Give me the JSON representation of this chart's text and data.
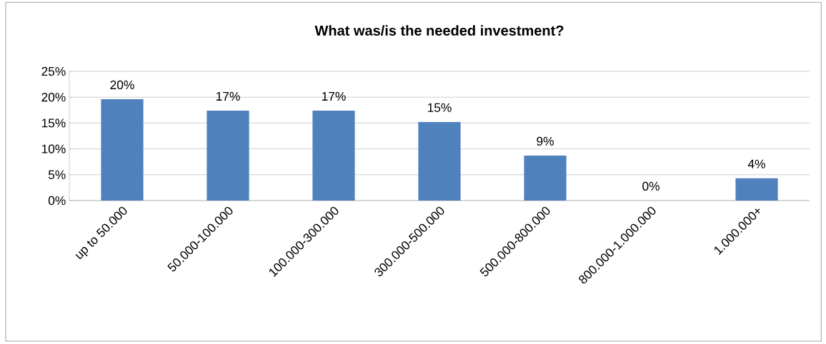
{
  "chart_data": {
    "type": "bar",
    "title": "What was/is the needed investment?",
    "categories": [
      "up to 50.000",
      "50.000-100.000",
      "100.000-300.000",
      "300.000-500.000",
      "500.000-800.000",
      "800.000-1.000.000",
      "1.000.000+"
    ],
    "values": [
      19.6,
      17.4,
      17.4,
      15.2,
      8.7,
      0,
      4.3
    ],
    "value_labels": [
      "20%",
      "17%",
      "17%",
      "15%",
      "9%",
      "0%",
      "4%"
    ],
    "color": "#4f81bd",
    "ylim": [
      0,
      25
    ],
    "yticks": [
      {
        "value": 0,
        "label": "0%"
      },
      {
        "value": 5,
        "label": "5%"
      },
      {
        "value": 10,
        "label": "10%"
      },
      {
        "value": 15,
        "label": "15%"
      },
      {
        "value": 20,
        "label": "20%"
      },
      {
        "value": 25,
        "label": "25%"
      }
    ],
    "grid": "y"
  }
}
